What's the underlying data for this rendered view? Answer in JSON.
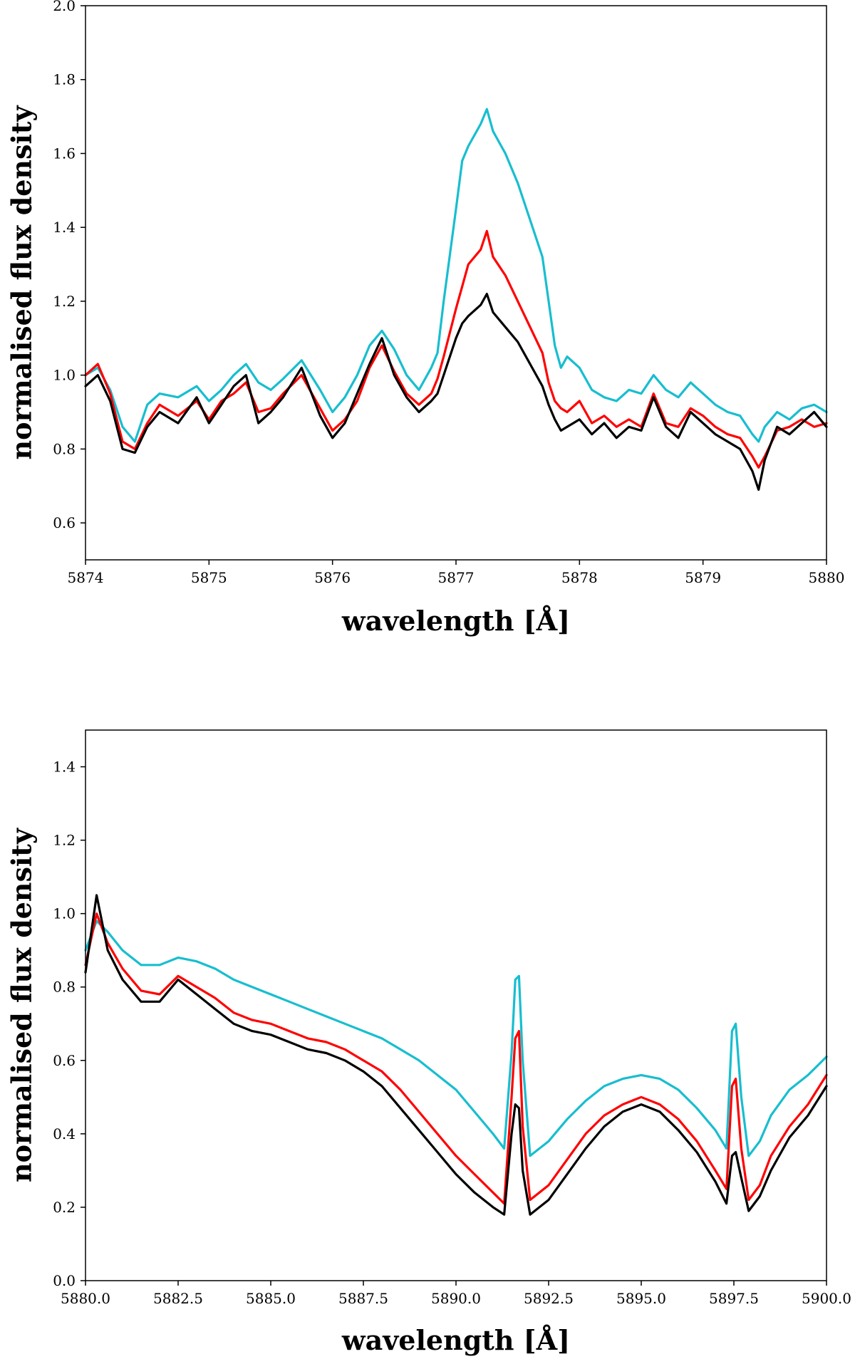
{
  "chart_data": [
    {
      "type": "line",
      "title": "",
      "xlabel": "wavelength [Å]",
      "ylabel": "normalised flux density",
      "xlim": [
        5874,
        5880
      ],
      "ylim": [
        0.5,
        2.0
      ],
      "xticks": [
        5874,
        5875,
        5876,
        5877,
        5878,
        5879,
        5880
      ],
      "xtick_labels": [
        "5874",
        "5875",
        "5876",
        "5877",
        "5878",
        "5879",
        "5880"
      ],
      "yticks": [
        0.6,
        0.8,
        1.0,
        1.2,
        1.4,
        1.6,
        1.8,
        2.0
      ],
      "ytick_labels": [
        "0.6",
        "0.8",
        "1.0",
        "1.2",
        "1.4",
        "1.6",
        "1.8",
        "2.0"
      ],
      "grid": false,
      "series": [
        {
          "name": "cyan",
          "color": "#17becf",
          "x": [
            5874.0,
            5874.1,
            5874.2,
            5874.3,
            5874.4,
            5874.5,
            5874.6,
            5874.75,
            5874.9,
            5875.0,
            5875.1,
            5875.2,
            5875.3,
            5875.4,
            5875.5,
            5875.6,
            5875.75,
            5875.9,
            5876.0,
            5876.1,
            5876.2,
            5876.3,
            5876.4,
            5876.5,
            5876.6,
            5876.7,
            5876.8,
            5876.85,
            5876.9,
            5877.0,
            5877.05,
            5877.1,
            5877.2,
            5877.25,
            5877.3,
            5877.4,
            5877.5,
            5877.6,
            5877.7,
            5877.75,
            5877.8,
            5877.85,
            5877.9,
            5878.0,
            5878.1,
            5878.2,
            5878.3,
            5878.4,
            5878.5,
            5878.6,
            5878.7,
            5878.8,
            5878.9,
            5879.0,
            5879.1,
            5879.2,
            5879.3,
            5879.4,
            5879.45,
            5879.5,
            5879.6,
            5879.7,
            5879.8,
            5879.9,
            5880.0
          ],
          "y": [
            1.0,
            1.02,
            0.96,
            0.86,
            0.82,
            0.92,
            0.95,
            0.94,
            0.97,
            0.93,
            0.96,
            1.0,
            1.03,
            0.98,
            0.96,
            0.99,
            1.04,
            0.96,
            0.9,
            0.94,
            1.0,
            1.08,
            1.12,
            1.07,
            1.0,
            0.96,
            1.02,
            1.06,
            1.2,
            1.45,
            1.58,
            1.62,
            1.68,
            1.72,
            1.66,
            1.6,
            1.52,
            1.42,
            1.32,
            1.2,
            1.08,
            1.02,
            1.05,
            1.02,
            0.96,
            0.94,
            0.93,
            0.96,
            0.95,
            1.0,
            0.96,
            0.94,
            0.98,
            0.95,
            0.92,
            0.9,
            0.89,
            0.84,
            0.82,
            0.86,
            0.9,
            0.88,
            0.91,
            0.92,
            0.9
          ]
        },
        {
          "name": "red",
          "color": "#ff0000",
          "x": [
            5874.0,
            5874.1,
            5874.2,
            5874.3,
            5874.4,
            5874.5,
            5874.6,
            5874.75,
            5874.9,
            5875.0,
            5875.1,
            5875.2,
            5875.3,
            5875.4,
            5875.5,
            5875.6,
            5875.75,
            5875.9,
            5876.0,
            5876.1,
            5876.2,
            5876.3,
            5876.4,
            5876.5,
            5876.6,
            5876.7,
            5876.8,
            5876.85,
            5876.9,
            5877.0,
            5877.05,
            5877.1,
            5877.2,
            5877.25,
            5877.3,
            5877.4,
            5877.5,
            5877.6,
            5877.7,
            5877.75,
            5877.8,
            5877.85,
            5877.9,
            5878.0,
            5878.1,
            5878.2,
            5878.3,
            5878.4,
            5878.5,
            5878.6,
            5878.7,
            5878.8,
            5878.9,
            5879.0,
            5879.1,
            5879.2,
            5879.3,
            5879.4,
            5879.45,
            5879.5,
            5879.6,
            5879.7,
            5879.8,
            5879.9,
            5880.0
          ],
          "y": [
            1.0,
            1.03,
            0.95,
            0.82,
            0.8,
            0.87,
            0.92,
            0.89,
            0.93,
            0.88,
            0.93,
            0.95,
            0.98,
            0.9,
            0.91,
            0.95,
            1.0,
            0.91,
            0.85,
            0.88,
            0.93,
            1.02,
            1.08,
            1.01,
            0.95,
            0.92,
            0.95,
            0.99,
            1.05,
            1.18,
            1.24,
            1.3,
            1.34,
            1.39,
            1.32,
            1.27,
            1.2,
            1.13,
            1.06,
            0.98,
            0.93,
            0.91,
            0.9,
            0.93,
            0.87,
            0.89,
            0.86,
            0.88,
            0.86,
            0.95,
            0.87,
            0.86,
            0.91,
            0.89,
            0.86,
            0.84,
            0.83,
            0.78,
            0.75,
            0.78,
            0.85,
            0.86,
            0.88,
            0.86,
            0.87
          ]
        },
        {
          "name": "black",
          "color": "#000000",
          "x": [
            5874.0,
            5874.1,
            5874.2,
            5874.3,
            5874.4,
            5874.5,
            5874.6,
            5874.75,
            5874.9,
            5875.0,
            5875.1,
            5875.2,
            5875.3,
            5875.4,
            5875.5,
            5875.6,
            5875.75,
            5875.9,
            5876.0,
            5876.1,
            5876.2,
            5876.3,
            5876.4,
            5876.5,
            5876.6,
            5876.7,
            5876.8,
            5876.85,
            5876.9,
            5877.0,
            5877.05,
            5877.1,
            5877.2,
            5877.25,
            5877.3,
            5877.4,
            5877.5,
            5877.6,
            5877.7,
            5877.75,
            5877.8,
            5877.85,
            5877.9,
            5878.0,
            5878.1,
            5878.2,
            5878.3,
            5878.4,
            5878.5,
            5878.6,
            5878.7,
            5878.8,
            5878.9,
            5879.0,
            5879.1,
            5879.2,
            5879.3,
            5879.4,
            5879.45,
            5879.5,
            5879.6,
            5879.7,
            5879.8,
            5879.9,
            5880.0
          ],
          "y": [
            0.97,
            1.0,
            0.93,
            0.8,
            0.79,
            0.86,
            0.9,
            0.87,
            0.94,
            0.87,
            0.92,
            0.97,
            1.0,
            0.87,
            0.9,
            0.94,
            1.02,
            0.89,
            0.83,
            0.87,
            0.95,
            1.03,
            1.1,
            1.0,
            0.94,
            0.9,
            0.93,
            0.95,
            1.0,
            1.1,
            1.14,
            1.16,
            1.19,
            1.22,
            1.17,
            1.13,
            1.09,
            1.03,
            0.97,
            0.92,
            0.88,
            0.85,
            0.86,
            0.88,
            0.84,
            0.87,
            0.83,
            0.86,
            0.85,
            0.94,
            0.86,
            0.83,
            0.9,
            0.87,
            0.84,
            0.82,
            0.8,
            0.74,
            0.69,
            0.77,
            0.86,
            0.84,
            0.87,
            0.9,
            0.86
          ]
        }
      ]
    },
    {
      "type": "line",
      "title": "",
      "xlabel": "wavelength [Å]",
      "ylabel": "normalised flux density",
      "xlim": [
        5880,
        5900
      ],
      "ylim": [
        0.0,
        1.5
      ],
      "xticks": [
        5880.0,
        5882.5,
        5885.0,
        5887.5,
        5890.0,
        5892.5,
        5895.0,
        5897.5,
        5900.0
      ],
      "xtick_labels": [
        "5880.0",
        "5882.5",
        "5885.0",
        "5887.5",
        "5890.0",
        "5892.5",
        "5895.0",
        "5897.5",
        "5900.0"
      ],
      "yticks": [
        0.0,
        0.2,
        0.4,
        0.6,
        0.8,
        1.0,
        1.2,
        1.4
      ],
      "ytick_labels": [
        "0.0",
        "0.2",
        "0.4",
        "0.6",
        "0.8",
        "1.0",
        "1.2",
        "1.4"
      ],
      "grid": false,
      "series": [
        {
          "name": "cyan",
          "color": "#17becf",
          "x": [
            5880.0,
            5880.3,
            5880.6,
            5881.0,
            5881.5,
            5882.0,
            5882.5,
            5883.0,
            5883.5,
            5884.0,
            5884.5,
            5885.0,
            5885.5,
            5886.0,
            5886.5,
            5887.0,
            5887.5,
            5888.0,
            5888.5,
            5889.0,
            5889.5,
            5890.0,
            5890.5,
            5891.0,
            5891.3,
            5891.5,
            5891.6,
            5891.7,
            5891.8,
            5892.0,
            5892.5,
            5893.0,
            5893.5,
            5894.0,
            5894.5,
            5895.0,
            5895.5,
            5896.0,
            5896.5,
            5897.0,
            5897.3,
            5897.45,
            5897.55,
            5897.7,
            5897.9,
            5898.2,
            5898.5,
            5899.0,
            5899.5,
            5900.0
          ],
          "y": [
            0.9,
            0.98,
            0.95,
            0.9,
            0.86,
            0.86,
            0.88,
            0.87,
            0.85,
            0.82,
            0.8,
            0.78,
            0.76,
            0.74,
            0.72,
            0.7,
            0.68,
            0.66,
            0.63,
            0.6,
            0.56,
            0.52,
            0.46,
            0.4,
            0.36,
            0.62,
            0.82,
            0.83,
            0.6,
            0.34,
            0.38,
            0.44,
            0.49,
            0.53,
            0.55,
            0.56,
            0.55,
            0.52,
            0.47,
            0.41,
            0.36,
            0.68,
            0.7,
            0.5,
            0.34,
            0.38,
            0.45,
            0.52,
            0.56,
            0.61
          ]
        },
        {
          "name": "red",
          "color": "#ff0000",
          "x": [
            5880.0,
            5880.3,
            5880.6,
            5881.0,
            5881.5,
            5882.0,
            5882.5,
            5883.0,
            5883.5,
            5884.0,
            5884.5,
            5885.0,
            5885.5,
            5886.0,
            5886.5,
            5887.0,
            5887.5,
            5888.0,
            5888.5,
            5889.0,
            5889.5,
            5890.0,
            5890.5,
            5891.0,
            5891.3,
            5891.5,
            5891.6,
            5891.7,
            5891.8,
            5892.0,
            5892.5,
            5893.0,
            5893.5,
            5894.0,
            5894.5,
            5895.0,
            5895.5,
            5896.0,
            5896.5,
            5897.0,
            5897.3,
            5897.45,
            5897.55,
            5897.7,
            5897.9,
            5898.2,
            5898.5,
            5899.0,
            5899.5,
            5900.0
          ],
          "y": [
            0.86,
            1.0,
            0.92,
            0.85,
            0.79,
            0.78,
            0.83,
            0.8,
            0.77,
            0.73,
            0.71,
            0.7,
            0.68,
            0.66,
            0.65,
            0.63,
            0.6,
            0.57,
            0.52,
            0.46,
            0.4,
            0.34,
            0.29,
            0.24,
            0.21,
            0.5,
            0.66,
            0.68,
            0.42,
            0.22,
            0.26,
            0.33,
            0.4,
            0.45,
            0.48,
            0.5,
            0.48,
            0.44,
            0.38,
            0.3,
            0.25,
            0.53,
            0.55,
            0.36,
            0.22,
            0.26,
            0.34,
            0.42,
            0.48,
            0.56
          ]
        },
        {
          "name": "black",
          "color": "#000000",
          "x": [
            5880.0,
            5880.3,
            5880.6,
            5881.0,
            5881.5,
            5882.0,
            5882.5,
            5883.0,
            5883.5,
            5884.0,
            5884.5,
            5885.0,
            5885.5,
            5886.0,
            5886.5,
            5887.0,
            5887.5,
            5888.0,
            5888.5,
            5889.0,
            5889.5,
            5890.0,
            5890.5,
            5891.0,
            5891.3,
            5891.5,
            5891.6,
            5891.7,
            5891.8,
            5892.0,
            5892.5,
            5893.0,
            5893.5,
            5894.0,
            5894.5,
            5895.0,
            5895.5,
            5896.0,
            5896.5,
            5897.0,
            5897.3,
            5897.45,
            5897.55,
            5897.7,
            5897.9,
            5898.2,
            5898.5,
            5899.0,
            5899.5,
            5900.0
          ],
          "y": [
            0.84,
            1.05,
            0.9,
            0.82,
            0.76,
            0.76,
            0.82,
            0.78,
            0.74,
            0.7,
            0.68,
            0.67,
            0.65,
            0.63,
            0.62,
            0.6,
            0.57,
            0.53,
            0.47,
            0.41,
            0.35,
            0.29,
            0.24,
            0.2,
            0.18,
            0.4,
            0.48,
            0.47,
            0.3,
            0.18,
            0.22,
            0.29,
            0.36,
            0.42,
            0.46,
            0.48,
            0.46,
            0.41,
            0.35,
            0.27,
            0.21,
            0.34,
            0.35,
            0.28,
            0.19,
            0.23,
            0.3,
            0.39,
            0.45,
            0.53
          ]
        }
      ]
    }
  ]
}
